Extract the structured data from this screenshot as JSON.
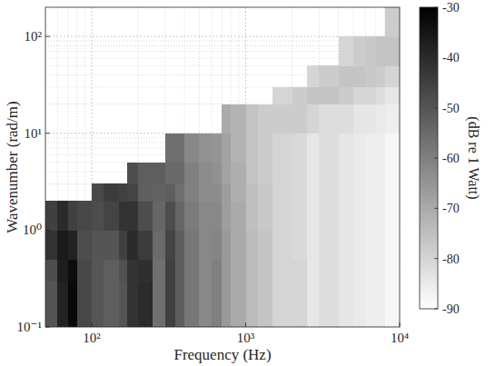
{
  "chart_data": {
    "type": "heatmap",
    "x_label": "Frequency (Hz)",
    "y_label": "Wavenumber (rad/m)",
    "log": true,
    "grid": true,
    "color": "#000000",
    "xlim": [
      50,
      10000
    ],
    "ylim": [
      0.1,
      200
    ],
    "xticks": [
      {
        "value": 100,
        "label": "10²"
      },
      {
        "value": 1000,
        "label": "10³"
      },
      {
        "value": 10000,
        "label": "10⁴"
      }
    ],
    "yticks": [
      {
        "value": 0.1,
        "label": "10⁻¹"
      },
      {
        "value": 1,
        "label": "10⁰"
      },
      {
        "value": 10,
        "label": "10¹"
      },
      {
        "value": 100,
        "label": "10²"
      }
    ],
    "x": [
      50,
      60,
      70,
      80,
      100,
      120,
      150,
      170,
      200,
      250,
      300,
      350,
      400,
      500,
      600,
      700,
      800,
      1000,
      1200,
      1500,
      2000,
      2500,
      3000,
      4000,
      5000,
      6000,
      7000,
      8000,
      10000
    ],
    "y": [
      0.1,
      0.2,
      0.3,
      0.5,
      1,
      2,
      3,
      5,
      10,
      20,
      30,
      50,
      100,
      200
    ],
    "values": [
      [
        -50,
        -38,
        -32,
        -47,
        -50,
        -52,
        -50,
        -42,
        -40,
        -56,
        -45,
        -52,
        -58,
        -62,
        -60,
        -66,
        -70,
        -74,
        -76,
        -80,
        -80,
        -84,
        -82,
        -84,
        -85,
        -86,
        -86,
        -88
      ],
      [
        -50,
        -38,
        -32,
        -47,
        -50,
        -52,
        -50,
        -42,
        -40,
        -56,
        -45,
        -52,
        -58,
        -62,
        -60,
        -66,
        -70,
        -74,
        -76,
        -80,
        -80,
        -84,
        -82,
        -84,
        -85,
        -86,
        -86,
        -88
      ],
      [
        -48,
        -37,
        -33,
        -47,
        -50,
        -52,
        -49,
        -42,
        -41,
        -56,
        -45,
        -52,
        -58,
        -62,
        -60,
        -66,
        -70,
        -74,
        -76,
        -80,
        -80,
        -84,
        -82,
        -84,
        -85,
        -86,
        -86,
        -88
      ],
      [
        -42,
        -36,
        -38,
        -48,
        -50,
        -50,
        -45,
        -40,
        -44,
        -55,
        -46,
        -52,
        -58,
        -62,
        -61,
        -66,
        -70,
        -74,
        -76,
        -80,
        -81,
        -84,
        -82,
        -84,
        -85,
        -86,
        -86,
        -88
      ],
      [
        -45,
        -40,
        -45,
        -47,
        -48,
        -46,
        -42,
        -42,
        -48,
        -54,
        -48,
        -54,
        -59,
        -62,
        -62,
        -67,
        -70,
        -75,
        -77,
        -80,
        -81,
        -84,
        -82,
        -84,
        -85,
        -86,
        -86,
        -88
      ],
      [
        null,
        null,
        null,
        null,
        -47,
        -44,
        -45,
        -46,
        -52,
        -53,
        -52,
        -56,
        -60,
        -63,
        -63,
        -67,
        -71,
        -75,
        -77,
        -80,
        -81,
        -84,
        -82,
        -84,
        -85,
        -86,
        -86,
        -88
      ],
      [
        null,
        null,
        null,
        null,
        null,
        null,
        null,
        -48,
        -52,
        -52,
        -55,
        -55,
        -60,
        -63,
        -64,
        -68,
        -71,
        -76,
        -78,
        -80,
        -81,
        -84,
        -82,
        -84,
        -85,
        -86,
        -86,
        -88
      ],
      [
        null,
        null,
        null,
        null,
        null,
        null,
        null,
        null,
        null,
        null,
        -56,
        -56,
        -62,
        -64,
        -65,
        -68,
        -72,
        -76,
        -78,
        -80,
        -81,
        -84,
        -82,
        -84,
        -85,
        -86,
        -86,
        -88
      ],
      [
        null,
        null,
        null,
        null,
        null,
        null,
        null,
        null,
        null,
        null,
        null,
        null,
        null,
        null,
        null,
        -70,
        -72,
        -76,
        -78,
        -78,
        -78,
        -80,
        -82,
        -82,
        -84,
        -84,
        -85,
        -86
      ],
      [
        null,
        null,
        null,
        null,
        null,
        null,
        null,
        null,
        null,
        null,
        null,
        null,
        null,
        null,
        null,
        null,
        null,
        null,
        null,
        -80,
        -78,
        -76,
        -76,
        -78,
        -80,
        -80,
        -82,
        -84
      ],
      [
        null,
        null,
        null,
        null,
        null,
        null,
        null,
        null,
        null,
        null,
        null,
        null,
        null,
        null,
        null,
        null,
        null,
        null,
        null,
        null,
        null,
        -80,
        -78,
        -76,
        -76,
        -77,
        -78,
        -80
      ],
      [
        null,
        null,
        null,
        null,
        null,
        null,
        null,
        null,
        null,
        null,
        null,
        null,
        null,
        null,
        null,
        null,
        null,
        null,
        null,
        null,
        null,
        null,
        null,
        -80,
        -78,
        -77,
        -76,
        -76
      ],
      [
        null,
        null,
        null,
        null,
        null,
        null,
        null,
        null,
        null,
        null,
        null,
        null,
        null,
        null,
        null,
        null,
        null,
        null,
        null,
        null,
        null,
        null,
        null,
        null,
        null,
        null,
        null,
        -78
      ]
    ],
    "colorbar_lim": [
      -90,
      -30
    ],
    "colorbar_ticks": [
      -30,
      -40,
      -50,
      -60,
      -70,
      -80,
      -90
    ],
    "colorbar_label": "(dB re 1 Watt)"
  }
}
